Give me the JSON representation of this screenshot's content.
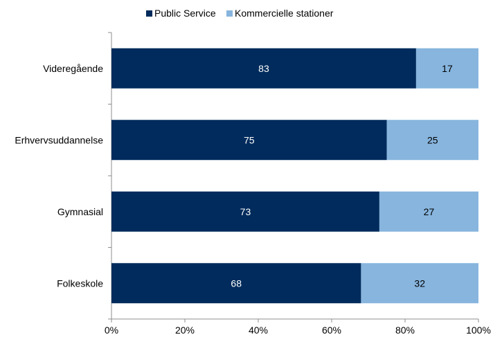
{
  "chart_data": {
    "type": "bar",
    "orientation": "horizontal",
    "stacked": true,
    "categories": [
      "Videregående",
      "Erhvervsuddannelse",
      "Gymnasial",
      "Folkeskole"
    ],
    "series": [
      {
        "name": "Public Service",
        "values": [
          83,
          75,
          73,
          68
        ],
        "color": "#002b5c",
        "label_color": "#ffffff"
      },
      {
        "name": "Kommercielle stationer",
        "values": [
          17,
          25,
          27,
          32
        ],
        "color": "#87b5de",
        "label_color": "#000000"
      }
    ],
    "xlim": [
      0,
      100
    ],
    "xticks": [
      "0%",
      "20%",
      "40%",
      "60%",
      "80%",
      "100%"
    ],
    "legend_position": "top-center",
    "grid": false
  }
}
